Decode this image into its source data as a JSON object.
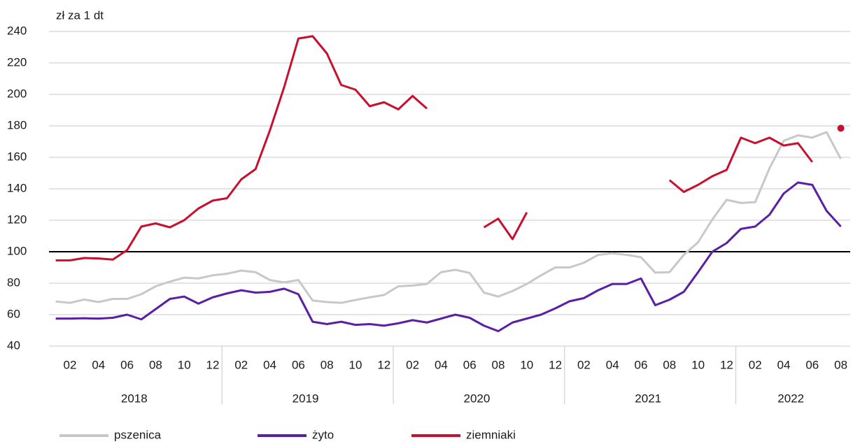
{
  "chart_data": {
    "type": "line",
    "y_axis_label": "zł za 1 dt",
    "categories": [
      null,
      "02",
      null,
      "04",
      null,
      "06",
      null,
      "08",
      null,
      "10",
      null,
      "12",
      null,
      "02",
      null,
      "04",
      null,
      "06",
      null,
      "08",
      null,
      "10",
      null,
      "12",
      null,
      "02",
      null,
      "04",
      null,
      "06",
      null,
      "08",
      null,
      "10",
      null,
      "12",
      null,
      "02",
      null,
      "04",
      null,
      "06",
      null,
      "08",
      null,
      "10",
      null,
      "12",
      null,
      "02",
      null,
      "04",
      null,
      "06",
      null,
      "08"
    ],
    "years": [
      "2018",
      "2019",
      "2020",
      "2021",
      "2022"
    ],
    "series": [
      {
        "name": "pszenica",
        "color": "#c8c8c8",
        "values": [
          68.4,
          67.5,
          69.6,
          68,
          70,
          70,
          73,
          78,
          81,
          83.5,
          83,
          85,
          86,
          88,
          87,
          82,
          80.5,
          82,
          69,
          68,
          67.5,
          69.3,
          71,
          72.5,
          78,
          78.5,
          79.5,
          87,
          88.5,
          86.5,
          74,
          71.5,
          75,
          79.5,
          85,
          90,
          90,
          93,
          98,
          99,
          98,
          96.5,
          86.7,
          87,
          98,
          106,
          120.5,
          133,
          131,
          131.5,
          153,
          170.5,
          174,
          172.5,
          176,
          159
        ]
      },
      {
        "name": "żyto",
        "color": "#5b1fa5",
        "values": [
          57.5,
          57.5,
          57.7,
          57.5,
          58,
          60,
          57,
          63.5,
          70,
          71.5,
          67,
          71,
          73.5,
          75.5,
          74,
          74.5,
          76.5,
          73,
          55.5,
          54,
          55.5,
          53.5,
          54,
          53,
          54.5,
          56.5,
          55,
          57.5,
          60,
          58,
          53,
          49.5,
          55,
          57.5,
          60,
          64,
          68.5,
          70.5,
          75.5,
          79.5,
          79.5,
          83,
          66,
          69.5,
          74.5,
          87,
          100,
          105.5,
          114.5,
          116,
          123.5,
          137,
          144,
          142.5,
          126,
          116
        ]
      },
      {
        "name": "ziemniaki",
        "color": "#c8102e",
        "values": [
          94.5,
          94.5,
          96,
          95.7,
          95,
          101,
          116,
          118,
          115.5,
          120,
          127.5,
          132.5,
          134,
          146,
          152.5,
          177,
          204.5,
          235.5,
          237,
          226,
          206,
          203,
          192.5,
          195,
          190.5,
          199,
          191,
          null,
          null,
          null,
          115.5,
          121,
          108,
          125,
          null,
          null,
          null,
          null,
          null,
          null,
          null,
          null,
          null,
          145.5,
          138,
          142.5,
          148,
          152,
          172.5,
          169,
          172.5,
          167.5,
          169,
          157,
          null,
          178.5
        ]
      }
    ],
    "ylim": [
      40,
      240
    ],
    "yticks": [
      40,
      60,
      80,
      100,
      120,
      140,
      160,
      180,
      200,
      220,
      240
    ],
    "reference_line": 100,
    "grid": true,
    "legend": "bottom"
  }
}
